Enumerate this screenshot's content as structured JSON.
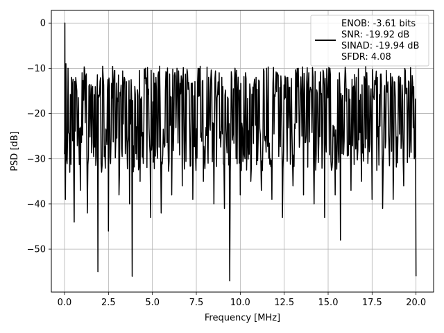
{
  "chart_data": {
    "type": "line",
    "title": "",
    "xlabel": "Frequency [MHz]",
    "ylabel": "PSD [dB]",
    "xlim": [
      -0.75,
      21.0
    ],
    "ylim": [
      -59.5,
      2.8
    ],
    "xticks": [
      0.0,
      2.5,
      5.0,
      7.5,
      10.0,
      12.5,
      15.0,
      17.5,
      20.0
    ],
    "xtick_labels": [
      "0.0",
      "2.5",
      "5.0",
      "7.5",
      "10.0",
      "12.5",
      "15.0",
      "17.5",
      "20.0"
    ],
    "yticks": [
      0,
      -10,
      -20,
      -30,
      -40,
      -50
    ],
    "ytick_labels": [
      "0",
      "−10",
      "−20",
      "−30",
      "−40",
      "−50"
    ],
    "grid": true,
    "legend_position": "top-right",
    "legend_lines": [
      "ENOB: -3.61 bits",
      "SNR: -19.92 dB",
      "SINAD: -19.94 dB",
      "SFDR: 4.08"
    ],
    "series_color": "#000000",
    "series": [
      {
        "name": "ENOB: -3.61 bits\nSNR: -19.92 dB\nSINAD: -19.94 dB\nSFDR: 4.08",
        "x": [
          0.0,
          0.02,
          0.05,
          0.08,
          0.12,
          0.2,
          0.3,
          0.4,
          0.55,
          0.7,
          0.9,
          1.0,
          1.3,
          1.6,
          1.9,
          2.2,
          2.5,
          2.8,
          3.1,
          3.4,
          3.7,
          3.85,
          4.0,
          4.3,
          4.6,
          4.9,
          5.2,
          5.5,
          5.8,
          6.1,
          6.4,
          6.7,
          7.0,
          7.3,
          7.6,
          7.9,
          8.2,
          8.5,
          8.8,
          9.1,
          9.4,
          9.7,
          10.0,
          10.3,
          10.6,
          10.9,
          11.2,
          11.5,
          11.8,
          12.1,
          12.4,
          12.7,
          13.0,
          13.3,
          13.6,
          13.9,
          14.2,
          14.5,
          14.8,
          15.1,
          15.4,
          15.7,
          16.0,
          16.3,
          16.6,
          16.9,
          17.2,
          17.5,
          17.8,
          18.1,
          18.4,
          18.7,
          19.0,
          19.3,
          19.6,
          19.9,
          20.0
        ],
        "y": [
          -29,
          0,
          -39,
          -9,
          -30,
          -10,
          -33,
          -12,
          -44,
          -15,
          -37,
          -11,
          -42,
          -14,
          -55,
          -12,
          -46,
          -13,
          -38,
          -12,
          -40,
          -56,
          -14,
          -35,
          -10,
          -43,
          -12,
          -42,
          -11,
          -38,
          -10,
          -36,
          -11,
          -39,
          -10,
          -35,
          -12,
          -40,
          -11,
          -41,
          -57,
          -10,
          -38,
          -11,
          -35,
          -12,
          -37,
          -10,
          -39,
          -11,
          -43,
          -12,
          -36,
          -10,
          -38,
          -11,
          -40,
          -13,
          -43,
          -10,
          -38,
          -48,
          -11,
          -37,
          -12,
          -35,
          -11,
          -39,
          -12,
          -41,
          -13,
          -39,
          -12,
          -36,
          -13,
          -30,
          -56
        ]
      }
    ]
  }
}
